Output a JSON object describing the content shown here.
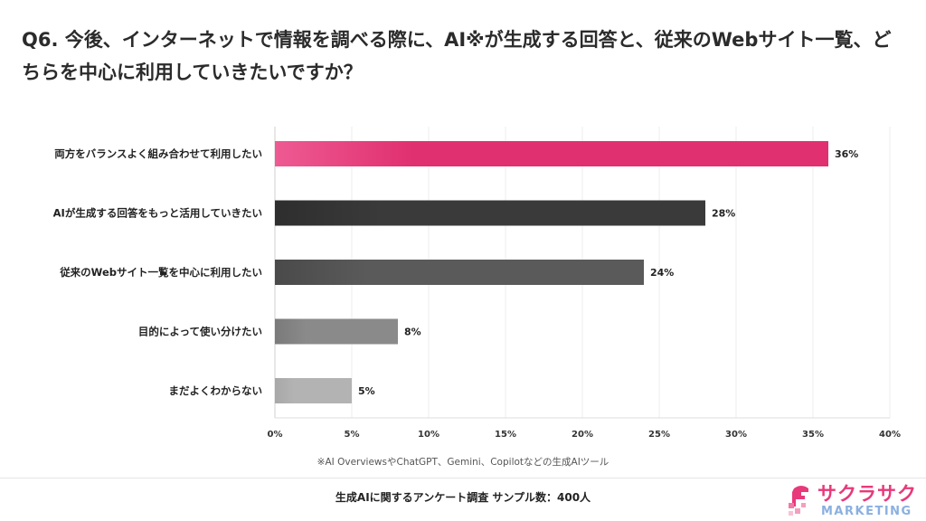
{
  "title": "Q6. 今後、インターネットで情報を調べる際に、AI※が生成する回答と、従来のWebサイト一覧、どちらを中心に利用していきたいですか？",
  "chart_data": {
    "type": "bar",
    "orientation": "horizontal",
    "categories": [
      "両方をバランスよく組み合わせて利用したい",
      "AIが生成する回答をもっと活用していきたい",
      "従来のWebサイト一覧を中心に利用したい",
      "目的によって使い分けたい",
      "まだよくわからない"
    ],
    "values": [
      36,
      28,
      24,
      8,
      5
    ],
    "value_labels": [
      "36%",
      "28%",
      "24%",
      "8%",
      "5%"
    ],
    "bar_colors": [
      "#e0306f",
      "#3a3a3a",
      "#5a5a5a",
      "#8a8a8a",
      "#b3b3b3"
    ],
    "bar_gradient_start": [
      "#ee5a93",
      "#2e2e2e",
      "#4a4a4a",
      "#7a7a7a",
      "#a8a8a8"
    ],
    "xlim": [
      0,
      40
    ],
    "xticks": [
      0,
      5,
      10,
      15,
      20,
      25,
      30,
      35,
      40
    ],
    "xtick_labels": [
      "0%",
      "5%",
      "10%",
      "15%",
      "20%",
      "25%",
      "30%",
      "35%",
      "40%"
    ],
    "grid": true,
    "legend": "none"
  },
  "note": "※AI OverviewsやChatGPT、Gemini、Copilotなどの生成AIツール",
  "footer": "生成AIに関するアンケート調査 サンプル数：400人",
  "logo": {
    "top": "サクラサク",
    "bottom": "MARKETING",
    "color_pink": "#e8397a",
    "color_blue": "#8ab0e0"
  }
}
